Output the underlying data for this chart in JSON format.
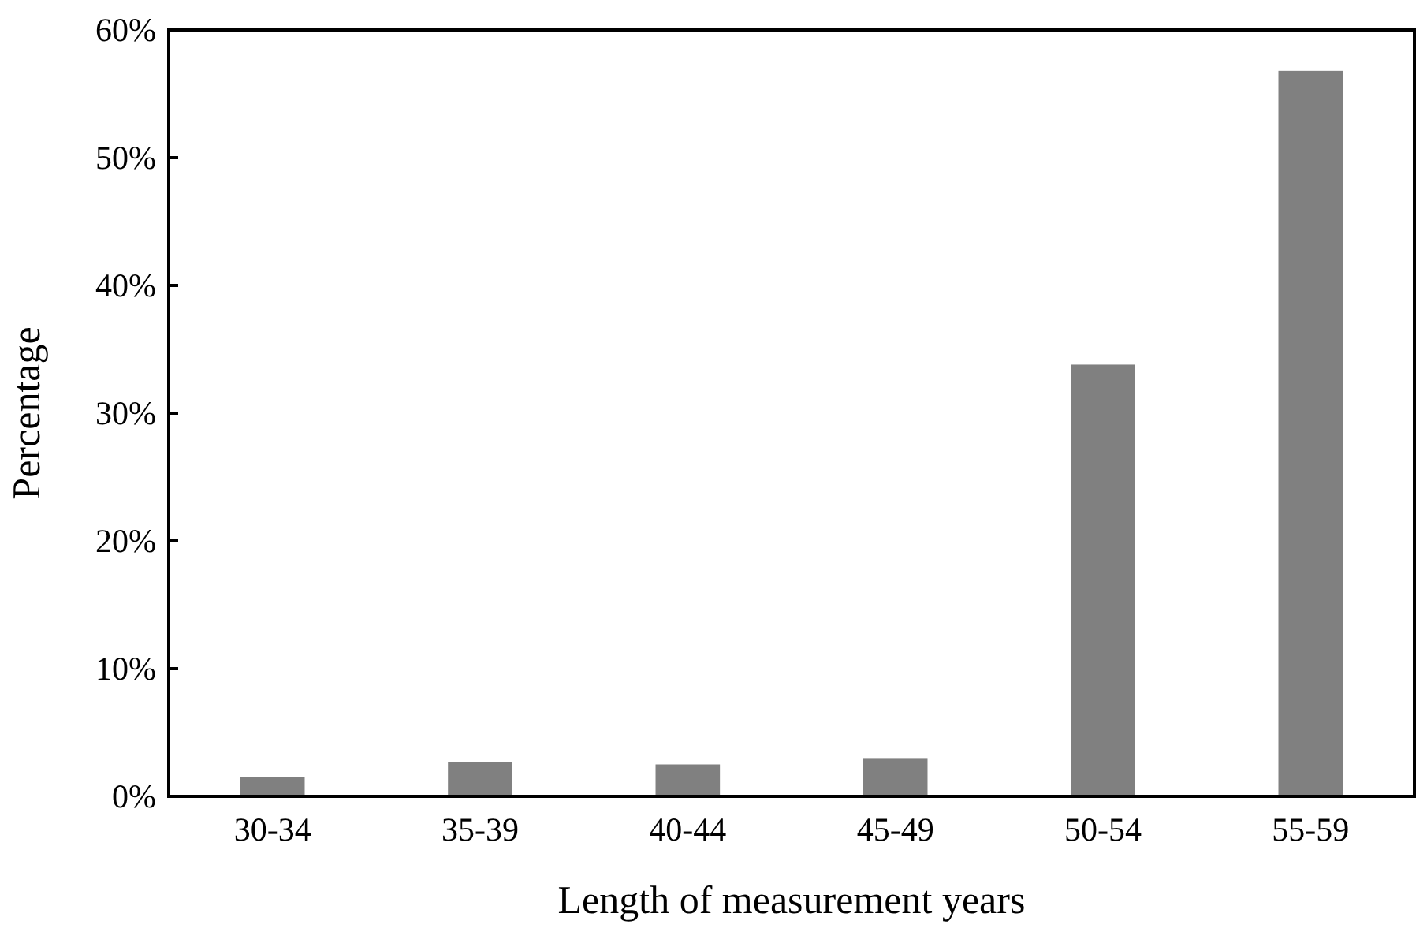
{
  "chart_data": {
    "type": "bar",
    "xlabel": "Length of measurement years",
    "ylabel": "Percentage",
    "categories": [
      "30-34",
      "35-39",
      "40-44",
      "45-49",
      "50-54",
      "55-59"
    ],
    "values": [
      1.5,
      2.7,
      2.5,
      3.0,
      33.8,
      56.8
    ],
    "color": "#808080",
    "ylim": [
      0,
      60
    ],
    "yticks": [
      {
        "value": 0,
        "label": "0%"
      },
      {
        "value": 10,
        "label": "10%"
      },
      {
        "value": 20,
        "label": "20%"
      },
      {
        "value": 30,
        "label": "30%"
      },
      {
        "value": 40,
        "label": "40%"
      },
      {
        "value": 50,
        "label": "50%"
      },
      {
        "value": 60,
        "label": "60%"
      }
    ],
    "grid": false
  }
}
